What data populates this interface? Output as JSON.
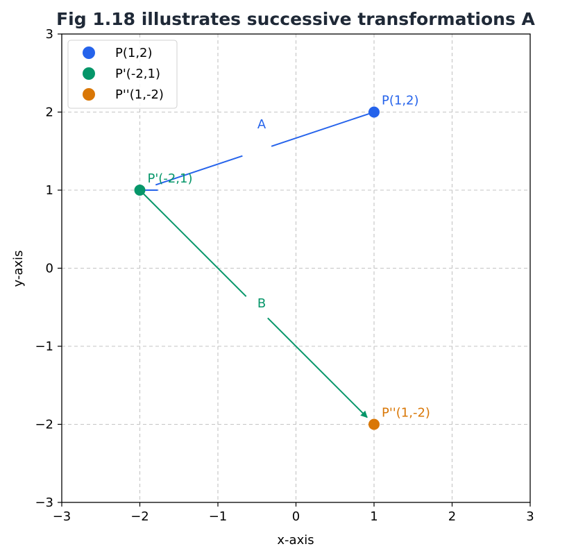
{
  "chart_data": {
    "type": "scatter",
    "title": "Fig 1.18 illustrates successive transformations A",
    "xlabel": "x-axis",
    "ylabel": "y-axis",
    "xlim": [
      -3,
      3
    ],
    "ylim": [
      -3,
      3
    ],
    "grid": true,
    "legend_position": "top-left",
    "xticks": [
      -3,
      -2,
      -1,
      0,
      1,
      2,
      3
    ],
    "yticks": [
      -3,
      -2,
      -1,
      0,
      1,
      2,
      3
    ],
    "xtick_labels": [
      "−3",
      "−2",
      "−1",
      "0",
      "1",
      "2",
      "3"
    ],
    "ytick_labels": [
      "−3",
      "−2",
      "−1",
      "0",
      "1",
      "2",
      "3"
    ],
    "points": [
      {
        "label": "P(1,2)",
        "x": 1,
        "y": 2,
        "color": "#2563eb"
      },
      {
        "label": "P'(-2,1)",
        "x": -2,
        "y": 1,
        "color": "#059669"
      },
      {
        "label": "P''(1,-2)",
        "x": 1,
        "y": -2,
        "color": "#d97706"
      }
    ],
    "arrows": [
      {
        "label": "A",
        "from": [
          1,
          2
        ],
        "to": [
          -2,
          1
        ],
        "color": "#2563eb"
      },
      {
        "label": "B",
        "from": [
          -2,
          1
        ],
        "to": [
          1,
          -2
        ],
        "color": "#059669"
      }
    ]
  }
}
